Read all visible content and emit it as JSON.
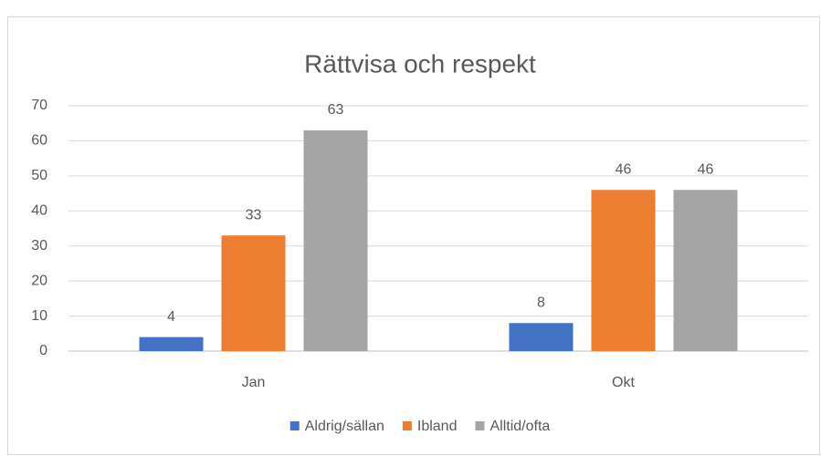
{
  "chart_data": {
    "type": "bar",
    "title": "Rättvisa och respekt",
    "categories": [
      "Jan",
      "Okt"
    ],
    "series": [
      {
        "name": "Aldrig/sällan",
        "color": "#4472c4",
        "values": [
          4,
          8
        ]
      },
      {
        "name": "Ibland",
        "color": "#ed7d31",
        "values": [
          33,
          46
        ]
      },
      {
        "name": "Alltid/ofta",
        "color": "#a5a5a5",
        "values": [
          63,
          46
        ]
      }
    ],
    "ylim": [
      0,
      70
    ],
    "yticks": [
      0,
      10,
      20,
      30,
      40,
      50,
      60,
      70
    ],
    "grid": true,
    "legend": "bottom"
  }
}
